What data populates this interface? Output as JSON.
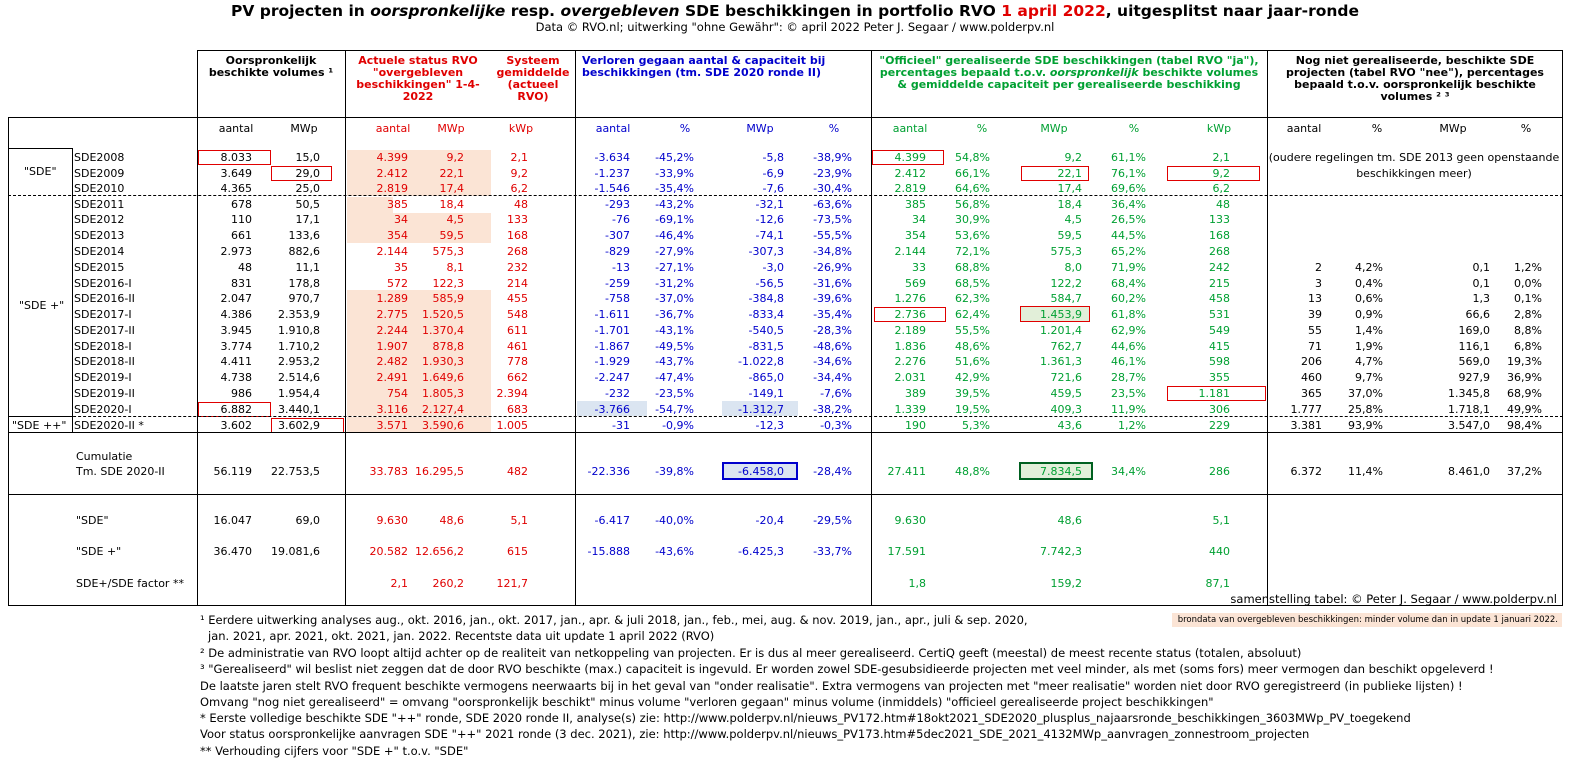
{
  "title": {
    "p1": "PV projecten in ",
    "p2": "oorspronkelijke",
    "p3": " resp. ",
    "p4": "overgebleven",
    "p5": " SDE beschikkingen in portfolio RVO ",
    "p6": "1 april 2022",
    "p7": ", uitgesplitst naar jaar-ronde"
  },
  "subtitle": "Data © RVO.nl; uitwerking \"ohne Gewähr\": © april 2022 Peter J. Segaar / www.polderpv.nl",
  "headers": {
    "orig": "Oorspronkelijk beschikte volumes ¹",
    "actual": "Actuele status RVO \"overgebleven beschikkingen\" 1-4-2022",
    "systeem": "Systeem gemiddelde (actueel RVO)",
    "lost": "Verloren gegaan aantal & capaciteit bij beschikkingen (tm. SDE 2020 ronde II)",
    "realised_a": "\"Officieel\" gerealiseerde SDE beschikkingen (tabel RVO \"ja\"), percentages bepaald t.o.v. ",
    "realised_b": "oorspronkelijk",
    "realised_c": " beschikte volumes & gemiddelde capaciteit per gerealiseerde beschikking",
    "notyet": "Nog niet gerealiseerde, beschikte SDE projecten (tabel RVO \"nee\"), percentages bepaald t.o.v. oorspronkelijk beschikte volumes ² ³"
  },
  "units": [
    "aantal",
    "MWp",
    "aantal",
    "MWp",
    "kWp",
    "aantal",
    "%",
    "MWp",
    "%",
    "aantal",
    "%",
    "MWp",
    "%",
    "kWp",
    "aantal",
    "%",
    "MWp",
    "%"
  ],
  "groups": {
    "sde": "\"SDE\"",
    "sdeplus": "\"SDE +\"",
    "sdeplusplus": "\"SDE ++\""
  },
  "old_note": "(oudere regelingen tm. SDE 2013 geen openstaande beschikkingen meer)",
  "rows": [
    {
      "label": "SDE2008",
      "v": [
        "8.033",
        "15,0",
        "4.399",
        "9,2",
        "2,1",
        "-3.634",
        "-45,2%",
        "-5,8",
        "-38,9%",
        "4.399",
        "54,8%",
        "9,2",
        "61,1%",
        "2,1",
        "",
        "",
        "",
        ""
      ]
    },
    {
      "label": "SDE2009",
      "v": [
        "3.649",
        "29,0",
        "2.412",
        "22,1",
        "9,2",
        "-1.237",
        "-33,9%",
        "-6,9",
        "-23,9%",
        "2.412",
        "66,1%",
        "22,1",
        "76,1%",
        "9,2",
        "",
        "",
        "",
        ""
      ]
    },
    {
      "label": "SDE2010",
      "v": [
        "4.365",
        "25,0",
        "2.819",
        "17,4",
        "6,2",
        "-1.546",
        "-35,4%",
        "-7,6",
        "-30,4%",
        "2.819",
        "64,6%",
        "17,4",
        "69,6%",
        "6,2",
        "",
        "",
        "",
        ""
      ]
    },
    {
      "label": "SDE2011",
      "v": [
        "678",
        "50,5",
        "385",
        "18,4",
        "48",
        "-293",
        "-43,2%",
        "-32,1",
        "-63,6%",
        "385",
        "56,8%",
        "18,4",
        "36,4%",
        "48",
        "",
        "",
        "",
        ""
      ]
    },
    {
      "label": "SDE2012",
      "v": [
        "110",
        "17,1",
        "34",
        "4,5",
        "133",
        "-76",
        "-69,1%",
        "-12,6",
        "-73,5%",
        "34",
        "30,9%",
        "4,5",
        "26,5%",
        "133",
        "",
        "",
        "",
        ""
      ]
    },
    {
      "label": "SDE2013",
      "v": [
        "661",
        "133,6",
        "354",
        "59,5",
        "168",
        "-307",
        "-46,4%",
        "-74,1",
        "-55,5%",
        "354",
        "53,6%",
        "59,5",
        "44,5%",
        "168",
        "",
        "",
        "",
        ""
      ]
    },
    {
      "label": "SDE2014",
      "v": [
        "2.973",
        "882,6",
        "2.144",
        "575,3",
        "268",
        "-829",
        "-27,9%",
        "-307,3",
        "-34,8%",
        "2.144",
        "72,1%",
        "575,3",
        "65,2%",
        "268",
        "",
        "",
        "",
        ""
      ]
    },
    {
      "label": "SDE2015",
      "v": [
        "48",
        "11,1",
        "35",
        "8,1",
        "232",
        "-13",
        "-27,1%",
        "-3,0",
        "-26,9%",
        "33",
        "68,8%",
        "8,0",
        "71,9%",
        "242",
        "2",
        "4,2%",
        "0,1",
        "1,2%"
      ]
    },
    {
      "label": "SDE2016-I",
      "v": [
        "831",
        "178,8",
        "572",
        "122,3",
        "214",
        "-259",
        "-31,2%",
        "-56,5",
        "-31,6%",
        "569",
        "68,5%",
        "122,2",
        "68,4%",
        "215",
        "3",
        "0,4%",
        "0,1",
        "0,0%"
      ]
    },
    {
      "label": "SDE2016-II",
      "v": [
        "2.047",
        "970,7",
        "1.289",
        "585,9",
        "455",
        "-758",
        "-37,0%",
        "-384,8",
        "-39,6%",
        "1.276",
        "62,3%",
        "584,7",
        "60,2%",
        "458",
        "13",
        "0,6%",
        "1,3",
        "0,1%"
      ]
    },
    {
      "label": "SDE2017-I",
      "v": [
        "4.386",
        "2.353,9",
        "2.775",
        "1.520,5",
        "548",
        "-1.611",
        "-36,7%",
        "-833,4",
        "-35,4%",
        "2.736",
        "62,4%",
        "1.453,9",
        "61,8%",
        "531",
        "39",
        "0,9%",
        "66,6",
        "2,8%"
      ]
    },
    {
      "label": "SDE2017-II",
      "v": [
        "3.945",
        "1.910,8",
        "2.244",
        "1.370,4",
        "611",
        "-1.701",
        "-43,1%",
        "-540,5",
        "-28,3%",
        "2.189",
        "55,5%",
        "1.201,4",
        "62,9%",
        "549",
        "55",
        "1,4%",
        "169,0",
        "8,8%"
      ]
    },
    {
      "label": "SDE2018-I",
      "v": [
        "3.774",
        "1.710,2",
        "1.907",
        "878,8",
        "461",
        "-1.867",
        "-49,5%",
        "-831,5",
        "-48,6%",
        "1.836",
        "48,6%",
        "762,7",
        "44,6%",
        "415",
        "71",
        "1,9%",
        "116,1",
        "6,8%"
      ]
    },
    {
      "label": "SDE2018-II",
      "v": [
        "4.411",
        "2.953,2",
        "2.482",
        "1.930,3",
        "778",
        "-1.929",
        "-43,7%",
        "-1.022,8",
        "-34,6%",
        "2.276",
        "51,6%",
        "1.361,3",
        "46,1%",
        "598",
        "206",
        "4,7%",
        "569,0",
        "19,3%"
      ]
    },
    {
      "label": "SDE2019-I",
      "v": [
        "4.738",
        "2.514,6",
        "2.491",
        "1.649,6",
        "662",
        "-2.247",
        "-47,4%",
        "-865,0",
        "-34,4%",
        "2.031",
        "42,9%",
        "721,6",
        "28,7%",
        "355",
        "460",
        "9,7%",
        "927,9",
        "36,9%"
      ]
    },
    {
      "label": "SDE2019-II",
      "v": [
        "986",
        "1.954,4",
        "754",
        "1.805,3",
        "2.394",
        "-232",
        "-23,5%",
        "-149,1",
        "-7,6%",
        "389",
        "39,5%",
        "459,5",
        "23,5%",
        "1.181",
        "365",
        "37,0%",
        "1.345,8",
        "68,9%"
      ]
    },
    {
      "label": "SDE2020-I",
      "v": [
        "6.882",
        "3.440,1",
        "3.116",
        "2.127,4",
        "683",
        "-3.766",
        "-54,7%",
        "-1.312,7",
        "-38,2%",
        "1.339",
        "19,5%",
        "409,3",
        "11,9%",
        "306",
        "1.777",
        "25,8%",
        "1.718,1",
        "49,9%"
      ]
    },
    {
      "label": "SDE2020-II *",
      "v": [
        "3.602",
        "3.602,9",
        "3.571",
        "3.590,6",
        "1.005",
        "-31",
        "-0,9%",
        "-12,3",
        "-0,3%",
        "190",
        "5,3%",
        "43,6",
        "1,2%",
        "229",
        "3.381",
        "93,9%",
        "3.547,0",
        "98,4%"
      ]
    }
  ],
  "cumulatie": {
    "label1": "Cumulatie",
    "label2": "Tm. SDE 2020-II",
    "v": [
      "56.119",
      "22.753,5",
      "33.783",
      "16.295,5",
      "482",
      "-22.336",
      "-39,8%",
      "-6.458,0",
      "-28,4%",
      "27.411",
      "48,8%",
      "7.834,5",
      "34,4%",
      "286",
      "6.372",
      "11,4%",
      "8.461,0",
      "37,2%"
    ]
  },
  "summary": [
    {
      "label": "\"SDE\"",
      "v": [
        "16.047",
        "69,0",
        "9.630",
        "48,6",
        "5,1",
        "-6.417",
        "-40,0%",
        "-20,4",
        "-29,5%",
        "9.630",
        "",
        "48,6",
        "",
        "5,1",
        "",
        "",
        "",
        ""
      ]
    },
    {
      "label": "\"SDE +\"",
      "v": [
        "36.470",
        "19.081,6",
        "20.582",
        "12.656,2",
        "615",
        "-15.888",
        "-43,6%",
        "-6.425,3",
        "-33,7%",
        "17.591",
        "",
        "7.742,3",
        "",
        "440",
        "",
        "",
        "",
        ""
      ]
    },
    {
      "label": "SDE+/SDE factor **",
      "v": [
        "",
        "",
        "2,1",
        "260,2",
        "121,7",
        "",
        "",
        "",
        "",
        "1,8",
        "",
        "159,2",
        "",
        "87,1",
        "",
        "",
        "",
        ""
      ]
    }
  ],
  "credit": "samenstelling tabel: © Peter J. Segaar / www.polderpv.nl",
  "brondata": "brondata van overgebleven beschikkingen: minder volume dan in update 1 januari 2022.",
  "notes": [
    "¹ Eerdere uitwerking analyses aug., okt. 2016, jan., okt.  2017, jan., apr. & juli 2018, jan., feb., mei, aug. & nov. 2019, jan., apr., juli & sep. 2020,",
    "  jan. 2021, apr. 2021, okt. 2021, jan. 2022. Recentste data uit update 1 april 2022 (RVO)",
    "² De administratie van RVO loopt altijd achter op de realiteit van netkoppeling van projecten. Er is dus al meer gerealiseerd. CertiQ geeft (meestal) de meest recente status (totalen, absoluut)",
    "³ \"Gerealiseerd\" wil beslist niet zeggen dat de door RVO beschikte (max.) capaciteit is ingevuld. Er worden zowel SDE-gesubsidieerde projecten met veel minder,  als met (soms fors) meer  vermogen dan beschikt opgeleverd !",
    "De laatste jaren stelt RVO frequent beschikte vermogens neerwaarts bij in het geval van \"onder realisatie\". Extra vermogens van projecten met \"meer realisatie\" worden niet door RVO geregistreerd (in publieke lijsten) !",
    "Omvang \"nog niet gerealiseerd\" = omvang \"oorspronkelijk beschikt\" minus volume \"verloren gegaan\" minus volume (inmiddels) \"officieel gerealiseerde project beschikkingen\"",
    "* Eerste volledige beschikte SDE \"++\" ronde, SDE 2020 ronde II, analyse(s) zie: http://www.polderpv.nl/nieuws_PV172.htm#18okt2021_SDE2020_plusplus_najaarsronde_beschikkingen_3603MWp_PV_toegekend",
    "Voor status oorspronkelijke aanvragen SDE \"++\" 2021 ronde (3 dec. 2021), zie: http://www.polderpv.nl/nieuws_PV173.htm#5dec2021_SDE_2021_4132MWp_aanvragen_zonnestroom_projecten",
    "** Verhouding cijfers voor \"SDE +\" t.o.v. \"SDE\""
  ],
  "colors": {
    "red": "#e00000",
    "blue": "#0000cc",
    "green": "#00a032",
    "peach": "#fbe4d5"
  }
}
